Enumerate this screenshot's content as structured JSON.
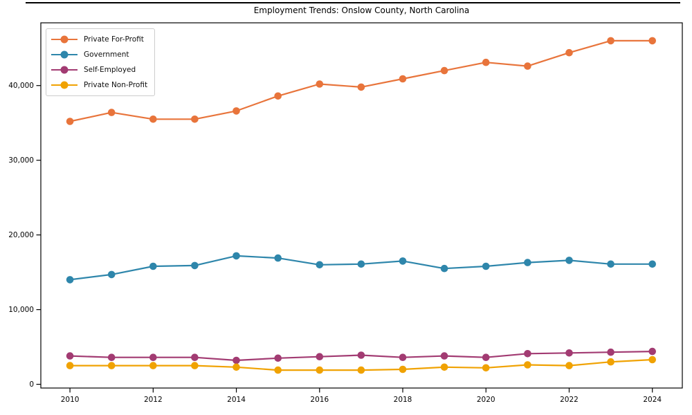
{
  "title": "Employment Trends: Onslow County, North Carolina",
  "chart_data": {
    "type": "line",
    "title": "Employment Trends: Onslow County, North Carolina",
    "xlabel": "",
    "ylabel": "",
    "grid": false,
    "legend_position": "upper-left",
    "marker": "circle",
    "x": [
      2010,
      2011,
      2012,
      2013,
      2014,
      2015,
      2016,
      2017,
      2018,
      2019,
      2020,
      2021,
      2022,
      2023,
      2024
    ],
    "x_ticks": [
      2010,
      2012,
      2014,
      2016,
      2018,
      2020,
      2022,
      2024
    ],
    "y_ticks": [
      0,
      10000,
      20000,
      30000,
      40000
    ],
    "y_tick_labels": [
      "0",
      "10,000",
      "20,000",
      "30,000",
      "40,000"
    ],
    "xlim": [
      2009.3,
      2024.72
    ],
    "ylim": [
      -500,
      48400
    ],
    "series": [
      {
        "name": "Private For-Profit",
        "slug": "private-for-profit",
        "color": "#e8743b",
        "values": [
          35200,
          36400,
          35500,
          35500,
          36600,
          38600,
          40200,
          39800,
          40900,
          42000,
          43100,
          42600,
          44400,
          46000,
          46000
        ]
      },
      {
        "name": "Government",
        "slug": "government",
        "color": "#2e86ab",
        "values": [
          14000,
          14700,
          15800,
          15900,
          17200,
          16900,
          16000,
          16100,
          16500,
          15500,
          15800,
          16300,
          16600,
          16100,
          16100
        ]
      },
      {
        "name": "Self-Employed",
        "slug": "self-employed",
        "color": "#a23b72",
        "values": [
          3800,
          3600,
          3600,
          3600,
          3200,
          3500,
          3700,
          3900,
          3600,
          3800,
          3600,
          4100,
          4200,
          4300,
          4400
        ]
      },
      {
        "name": "Private Non-Profit",
        "slug": "private-non-profit",
        "color": "#f0a202",
        "values": [
          2500,
          2500,
          2500,
          2500,
          2300,
          1900,
          1900,
          1900,
          2000,
          2300,
          2200,
          2600,
          2500,
          3000,
          3300
        ]
      }
    ]
  }
}
